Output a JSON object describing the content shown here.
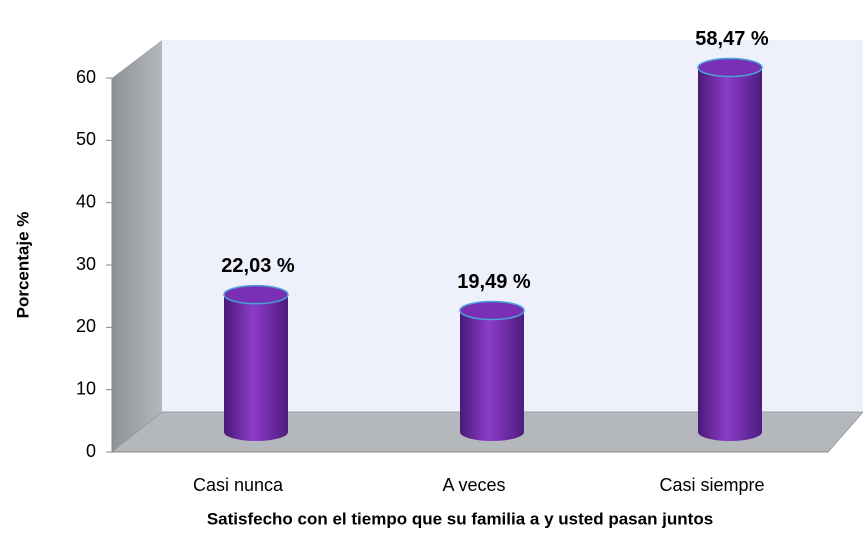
{
  "chart_data": {
    "type": "bar",
    "categories": [
      "Casi nunca",
      "A veces",
      "Casi siempre"
    ],
    "values": [
      22.03,
      19.49,
      58.47
    ],
    "value_labels": [
      "22,03 %",
      "19,49 %",
      "58,47 %"
    ],
    "color": "#7030a0",
    "ylim": [
      0,
      60
    ],
    "yticks": [
      0,
      10,
      20,
      30,
      40,
      50,
      60
    ],
    "ylabel": "Porcentaje %",
    "xlabel": "Satisfecho con el tiempo que su familia a y usted pasan juntos"
  }
}
